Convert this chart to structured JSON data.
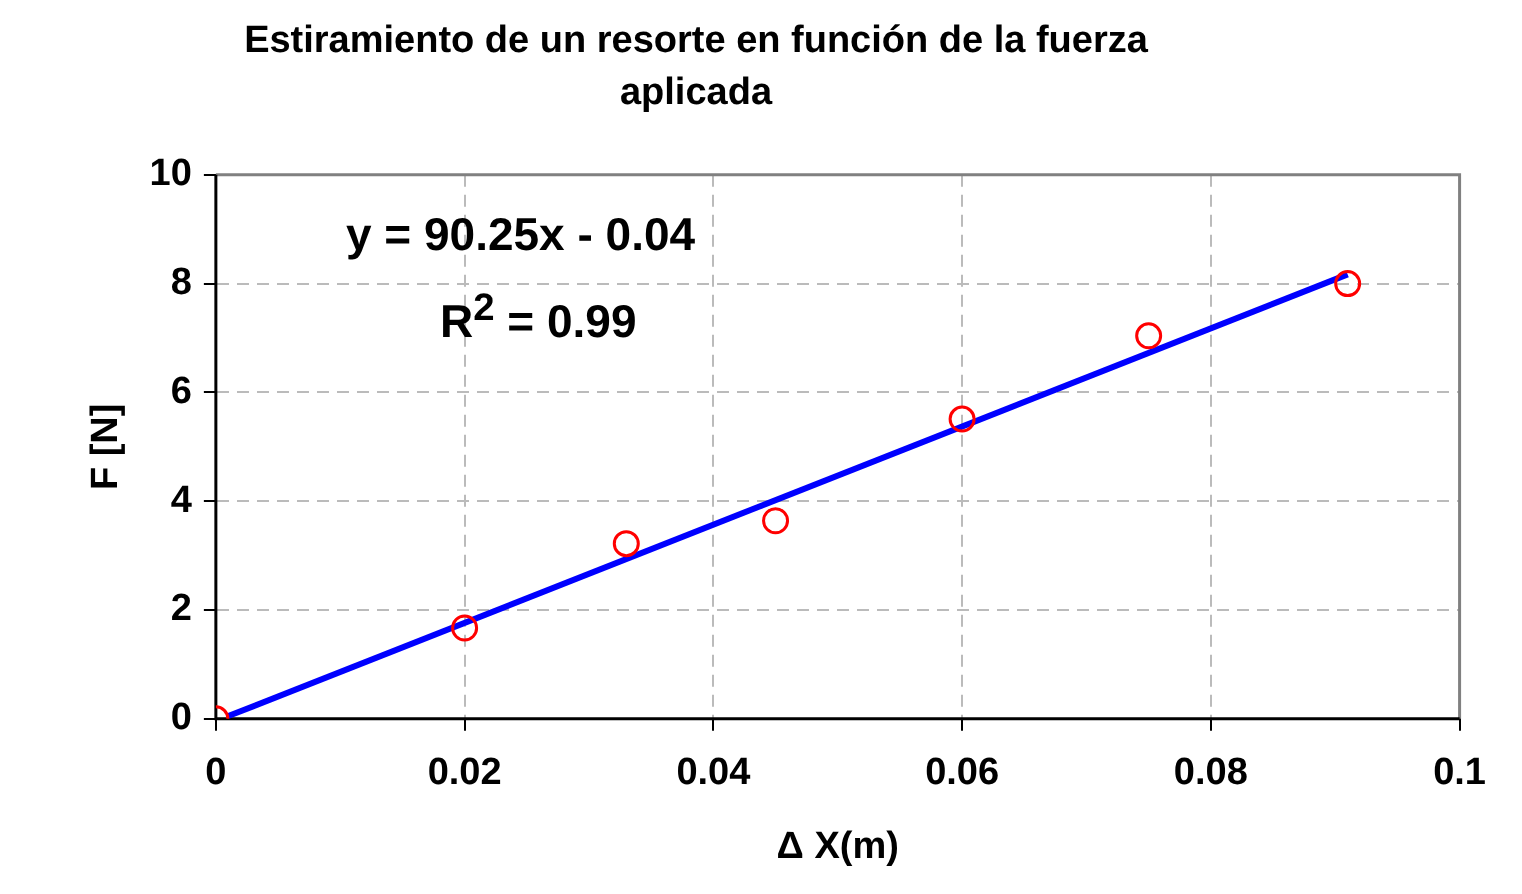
{
  "chart_data": {
    "type": "scatter",
    "title": "Estiramiento de un resorte en función de la fuerza aplicada",
    "xlabel": "Δ X(m)",
    "ylabel": "F [N]",
    "annotations": [
      "y = 90.25x - 0.04",
      "R$^{2}$ = 0.99"
    ],
    "series": [
      {
        "color": "#ff0000",
        "marker": "circle",
        "x": [
          0,
          0.02,
          0.033,
          0.045,
          0.06,
          0.075,
          0.091
        ],
        "values": [
          0,
          1.67,
          3.22,
          3.64,
          5.51,
          7.04,
          8.0
        ]
      },
      {
        "type": "line",
        "color": "#0000ff",
        "marker": "none",
        "x": [
          0.001,
          0.091
        ],
        "values": [
          0.05,
          8.17
        ]
      }
    ],
    "xlim": [
      0,
      0.1
    ],
    "xticks": [
      0,
      0.02,
      0.04,
      0.06,
      0.08,
      0.1
    ],
    "ylim": [
      0,
      10
    ],
    "yticks": [
      0,
      2,
      4,
      6,
      8,
      10
    ],
    "grid": true,
    "legend": false
  }
}
